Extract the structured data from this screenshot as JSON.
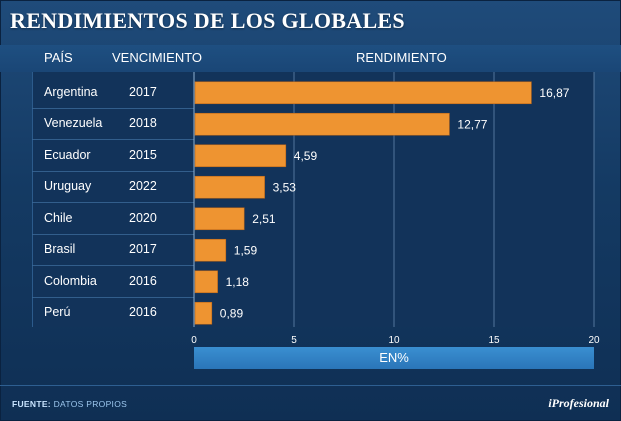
{
  "title": "RENDIMIENTOS DE LOS GLOBALES",
  "headers": {
    "country": "PAÍS",
    "maturity": "VENCIMIENTO",
    "yield": "RENDIMIENTO"
  },
  "unit_label": "EN%",
  "footer": {
    "source_label": "FUENTE:",
    "source_text": "DATOS PROPIOS",
    "brand": "iProfesional"
  },
  "colors": {
    "bar": "#ee9431",
    "bar_edge": "#b8661a",
    "grid": "#6f93b8",
    "background": "#143a63"
  },
  "chart_data": {
    "type": "bar",
    "orientation": "horizontal",
    "categories": [
      "Argentina",
      "Venezuela",
      "Ecuador",
      "Uruguay",
      "Chile",
      "Brasil",
      "Colombia",
      "Perú"
    ],
    "maturity": [
      "2017",
      "2018",
      "2015",
      "2022",
      "2020",
      "2017",
      "2016",
      "2016"
    ],
    "values": [
      16.87,
      12.77,
      4.59,
      3.53,
      2.51,
      1.59,
      1.18,
      0.89
    ],
    "value_labels": [
      "16,87",
      "12,77",
      "4,59",
      "3,53",
      "2,51",
      "1,59",
      "1,18",
      "0,89"
    ],
    "xlim": [
      0,
      20
    ],
    "xticks": [
      0,
      5,
      10,
      15,
      20
    ],
    "xlabel": "EN%",
    "grid": true
  }
}
